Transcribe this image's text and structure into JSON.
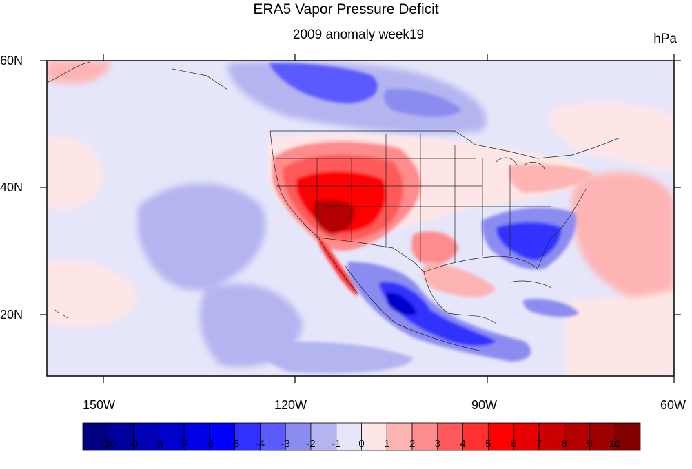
{
  "figure": {
    "title": "ERA5 Vapor Pressure Deficit",
    "subtitle": "2009 anomaly week19",
    "units": "hPa"
  },
  "axes": {
    "lat_labels": [
      "60N",
      "40N",
      "20N"
    ],
    "lon_labels": [
      "150W",
      "120W",
      "90W",
      "60W"
    ],
    "lon_range": [
      -159,
      -61
    ],
    "lat_range": [
      10,
      60
    ]
  },
  "colorbar": {
    "labels": [
      "-10",
      "-9",
      "-8",
      "-7",
      "-6",
      "-5",
      "-4",
      "-3",
      "-2",
      "-1",
      "0",
      "1",
      "2",
      "3",
      "4",
      "5",
      "6",
      "7",
      "8",
      "9",
      "10"
    ],
    "colors": [
      "#000080",
      "#00009c",
      "#0000b4",
      "#0000cc",
      "#0000e6",
      "#0000ff",
      "#3030ff",
      "#5a5aff",
      "#8c8cf0",
      "#b4b4f0",
      "#e6e6fa",
      "#ffe6e6",
      "#ffb4b4",
      "#ff8c8c",
      "#ff5a5a",
      "#ff3030",
      "#ff0000",
      "#e60000",
      "#cc0000",
      "#b40000",
      "#9c0000",
      "#800000"
    ]
  },
  "map_regions": [
    {
      "name": "western-us-positive",
      "level": 5
    },
    {
      "name": "southwest-core",
      "level": 8
    },
    {
      "name": "southeast-us-negative",
      "level": -4
    },
    {
      "name": "mexico-negative",
      "level": -7
    },
    {
      "name": "north-canada-negative",
      "level": -4
    },
    {
      "name": "atlantic-positive",
      "level": 4
    },
    {
      "name": "texas-positive",
      "level": 3
    }
  ]
}
